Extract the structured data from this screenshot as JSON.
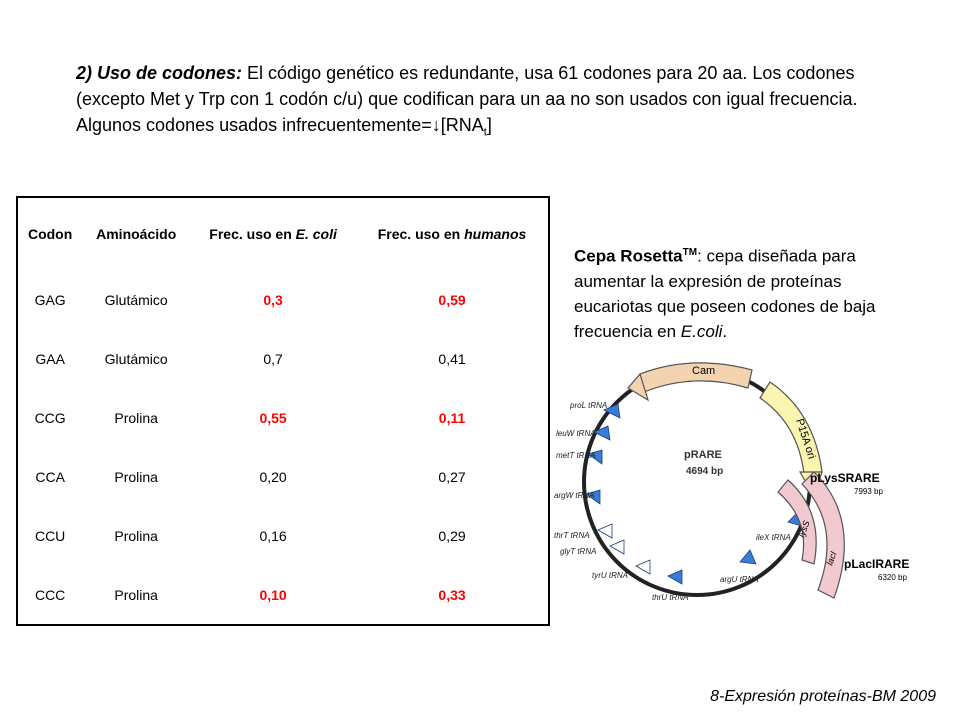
{
  "heading": {
    "lead": "2) Uso de codones:",
    "text": " El código genético es redundante, usa 61 codones para 20 aa. Los codones (excepto Met y Trp con 1 codón c/u) que codifican para un aa no son usados con igual frecuencia. Algunos codones usados infrecuentemente=↓[RNA",
    "subscript": "t",
    "tail": "]"
  },
  "table": {
    "headers": {
      "codon": "Codon",
      "aa": "Aminoácido",
      "ecoli_prefix": "Frec. uso en ",
      "ecoli_italic": "E. coli",
      "human_prefix": "Frec. uso en ",
      "human_italic": "humanos"
    },
    "rows": [
      {
        "codon": "GAG",
        "aa": "Glutámico",
        "ecoli": "0,3",
        "human": "0,59",
        "highlight": true
      },
      {
        "codon": "GAA",
        "aa": "Glutámico",
        "ecoli": "0,7",
        "human": "0,41",
        "highlight": false
      },
      {
        "codon": "CCG",
        "aa": "Prolina",
        "ecoli": "0,55",
        "human": "0,11",
        "highlight": true
      },
      {
        "codon": "CCA",
        "aa": "Prolina",
        "ecoli": "0,20",
        "human": "0,27",
        "highlight": false
      },
      {
        "codon": "CCU",
        "aa": "Prolina",
        "ecoli": "0,16",
        "human": "0,29",
        "highlight": false
      },
      {
        "codon": "CCC",
        "aa": "Prolina",
        "ecoli": "0,10",
        "human": "0,33",
        "highlight": true
      }
    ],
    "highlight_color": "#ff0000"
  },
  "rosetta": {
    "name": "Cepa Rosetta",
    "tm": "TM",
    "text": ": cepa diseñada para aumentar la expresión de proteínas eucariotas que poseen codones de baja frecuencia en ",
    "italic": "E.coli",
    "end": "."
  },
  "plasmid": {
    "name": "pRARE",
    "size": "4694 bp",
    "cam": "Cam",
    "ori": "P15A ori",
    "lys_name": "pLysSRARE",
    "lys_size": "7993 bp",
    "laci_name": "pLacIRARE",
    "laci_size": "6320 bp",
    "lyss": "lysS",
    "laci": "lacI",
    "trnas": [
      "proL tRNA",
      "leuW tRNA",
      "metT tRNA",
      "argW tRNA",
      "thrT tRNA",
      "glyT tRNA",
      "tyrU tRNA",
      "thrU tRNA",
      "argU tRNA",
      "ileX tRNA"
    ],
    "colors": {
      "cam": "#f4d3b0",
      "ori": "#fbf5b0",
      "pink": "#f1c9cf",
      "blue": "#3a7bd5"
    }
  },
  "footer": "8-Expresión proteínas-BM 2009"
}
